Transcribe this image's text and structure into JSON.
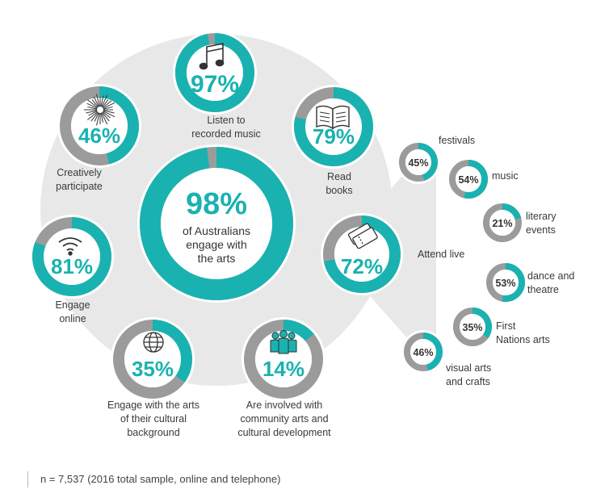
{
  "colors": {
    "teal": "#1ab2b0",
    "grey": "#9b9b9b",
    "background": "#e8e8e8",
    "text": "#3a3a3a"
  },
  "chart_data": {
    "type": "pie",
    "center": {
      "value": 98,
      "label": "98%",
      "text": [
        "of Australians",
        "engage with",
        "the arts"
      ]
    },
    "items": [
      {
        "id": "recorded-music",
        "value": 97,
        "label": "97%",
        "text": [
          "Listen to",
          "recorded music"
        ],
        "icon": "music-note-icon"
      },
      {
        "id": "read-books",
        "value": 79,
        "label": "79%",
        "text": [
          "Read",
          "books"
        ],
        "icon": "book-icon"
      },
      {
        "id": "creatively-participate",
        "value": 46,
        "label": "46%",
        "text": [
          "Creatively",
          "participate"
        ],
        "icon": "firework-icon"
      },
      {
        "id": "engage-online",
        "value": 81,
        "label": "81%",
        "text": [
          "Engage",
          "online"
        ],
        "icon": "wifi-icon"
      },
      {
        "id": "cultural-background",
        "value": 35,
        "label": "35%",
        "text": [
          "Engage with the arts",
          "of their cultural",
          "background"
        ],
        "icon": "globe-icon"
      },
      {
        "id": "community-arts",
        "value": 14,
        "label": "14%",
        "text": [
          "Are involved with",
          "community arts and",
          "cultural development"
        ],
        "icon": "people-icon"
      },
      {
        "id": "attend-live",
        "value": 72,
        "label": "72%",
        "text": [
          "Attend live"
        ],
        "icon": "tickets-icon"
      }
    ],
    "attend_live_breakdown": [
      {
        "id": "festivals",
        "value": 45,
        "label": "45%",
        "text": [
          "festivals"
        ]
      },
      {
        "id": "music",
        "value": 54,
        "label": "54%",
        "text": [
          "music"
        ]
      },
      {
        "id": "literary-events",
        "value": 21,
        "label": "21%",
        "text": [
          "literary",
          "events"
        ]
      },
      {
        "id": "dance-theatre",
        "value": 53,
        "label": "53%",
        "text": [
          "dance and",
          "theatre"
        ]
      },
      {
        "id": "first-nations",
        "value": 35,
        "label": "35%",
        "text": [
          "First",
          "Nations arts"
        ]
      },
      {
        "id": "visual-arts",
        "value": 46,
        "label": "46%",
        "text": [
          "visual arts",
          "and crafts"
        ]
      }
    ]
  },
  "footnote": "n =  7,537 (2016 total sample, online and telephone)"
}
